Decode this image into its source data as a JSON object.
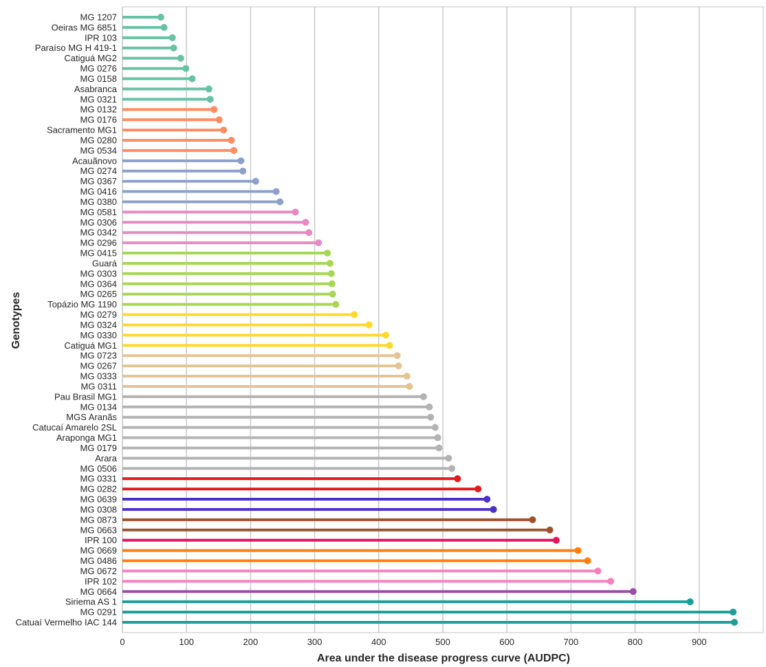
{
  "chart_data": {
    "type": "lollipop",
    "orientation": "horizontal",
    "xlabel": "Area under the disease progress curve (AUDPC)",
    "ylabel": "Genotypes",
    "xlim": [
      0,
      1000
    ],
    "xticks": [
      0,
      100,
      200,
      300,
      400,
      500,
      600,
      700,
      800,
      900
    ],
    "grid": true,
    "categories": [
      "MG 1207",
      "Oeiras MG 6851",
      "IPR 103",
      "Paraíso MG H 419-1",
      "Catiguá MG2",
      "MG 0276",
      "MG 0158",
      "Asabranca",
      "MG 0321",
      "MG 0132",
      "MG 0176",
      "Sacramento MG1",
      "MG 0280",
      "MG 0534",
      "Acauãnovo",
      "MG 0274",
      "MG 0367",
      "MG 0416",
      "MG 0380",
      "MG 0581",
      "MG 0306",
      "MG 0342",
      "MG 0296",
      "MG 0415",
      "Guará",
      "MG 0303",
      "MG 0364",
      "MG 0265",
      "Topázio MG 1190",
      "MG 0279",
      "MG 0324",
      "MG 0330",
      "Catiguá MG1",
      "MG 0723",
      "MG 0267",
      "MG 0333",
      "MG 0311",
      "Pau Brasil MG1",
      "MG 0134",
      "MGS Aranãs",
      "Catucaí Amarelo 2SL",
      "Araponga MG1",
      "MG 0179",
      "Arara",
      "MG 0506",
      "MG 0331",
      "MG 0282",
      "MG 0639",
      "MG 0308",
      "MG 0873",
      "MG 0663",
      "IPR 100",
      "MG 0669",
      "MG 0486",
      "MG 0672",
      "IPR 102",
      "MG 0664",
      "Siriema AS 1",
      "MG 0291",
      "Catuaí Vermelho IAC 144"
    ],
    "values": [
      60,
      65,
      78,
      80,
      91,
      99,
      109,
      135,
      137,
      143,
      151,
      158,
      170,
      174,
      185,
      188,
      208,
      240,
      246,
      270,
      286,
      291,
      306,
      320,
      324,
      326,
      327,
      328,
      333,
      362,
      385,
      411,
      417,
      429,
      431,
      444,
      448,
      470,
      479,
      481,
      488,
      492,
      494,
      509,
      514,
      523,
      555,
      569,
      579,
      640,
      667,
      677,
      711,
      726,
      742,
      762,
      797,
      886,
      953,
      955
    ],
    "colors": [
      "#66c2a5",
      "#66c2a5",
      "#66c2a5",
      "#66c2a5",
      "#66c2a5",
      "#66c2a5",
      "#66c2a5",
      "#66c2a5",
      "#66c2a5",
      "#fc8d62",
      "#fc8d62",
      "#fc8d62",
      "#fc8d62",
      "#fc8d62",
      "#8da0cb",
      "#8da0cb",
      "#8da0cb",
      "#8da0cb",
      "#8da0cb",
      "#e78ac3",
      "#e78ac3",
      "#e78ac3",
      "#e78ac3",
      "#a6d854",
      "#a6d854",
      "#a6d854",
      "#a6d854",
      "#a6d854",
      "#a6d854",
      "#ffd92f",
      "#ffd92f",
      "#ffd92f",
      "#ffd92f",
      "#e5c494",
      "#e5c494",
      "#e5c494",
      "#e5c494",
      "#b3b3b3",
      "#b3b3b3",
      "#b3b3b3",
      "#b3b3b3",
      "#b3b3b3",
      "#b3b3b3",
      "#b3b3b3",
      "#b3b3b3",
      "#e41a1c",
      "#e41a1c",
      "#4b2fc9",
      "#4b2fc9",
      "#a0522d",
      "#a0522d",
      "#e8125c",
      "#ff7f0e",
      "#ff7f0e",
      "#f781bf",
      "#f781bf",
      "#984ea3",
      "#1b9e99",
      "#1b9e99",
      "#1b9e99"
    ]
  }
}
